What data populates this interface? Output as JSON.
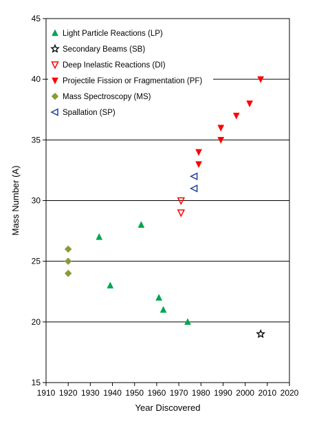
{
  "chart_data": {
    "type": "scatter",
    "title": "",
    "xlabel": "Year Discovered",
    "ylabel": "Mass Number (A)",
    "xlim": [
      1910,
      2020
    ],
    "ylim": [
      15,
      45
    ],
    "xticks": [
      "1910",
      "1920",
      "1930",
      "1940",
      "1950",
      "1960",
      "1970",
      "1980",
      "1990",
      "2000",
      "2010",
      "2020"
    ],
    "yticks": [
      "15",
      "20",
      "25",
      "30",
      "35",
      "40",
      "45"
    ],
    "grid": "horizontal major gridlines",
    "legend_position": "top-left",
    "series": [
      {
        "name": "Light Particle Reactions (LP)",
        "marker": "triangle-up",
        "color": "#00a651",
        "filled": true,
        "points": [
          {
            "x": 1934,
            "y": 27
          },
          {
            "x": 1939,
            "y": 23
          },
          {
            "x": 1953,
            "y": 28
          },
          {
            "x": 1961,
            "y": 22
          },
          {
            "x": 1963,
            "y": 21
          },
          {
            "x": 1974,
            "y": 20
          }
        ]
      },
      {
        "name": "Secondary Beams (SB)",
        "marker": "star",
        "color": "#000000",
        "filled": false,
        "points": [
          {
            "x": 2007,
            "y": 19
          }
        ]
      },
      {
        "name": "Deep Inelastic Reactions (DI)",
        "marker": "triangle-down",
        "color": "#ff0000",
        "filled": false,
        "points": [
          {
            "x": 1971,
            "y": 30
          },
          {
            "x": 1971,
            "y": 29
          }
        ]
      },
      {
        "name": "Projectile Fission or Fragmentation (PF)",
        "marker": "triangle-down",
        "color": "#ff0000",
        "filled": true,
        "points": [
          {
            "x": 1979,
            "y": 34
          },
          {
            "x": 1979,
            "y": 33
          },
          {
            "x": 1989,
            "y": 36
          },
          {
            "x": 1989,
            "y": 35
          },
          {
            "x": 1996,
            "y": 37
          },
          {
            "x": 2002,
            "y": 38
          },
          {
            "x": 2007,
            "y": 40
          }
        ]
      },
      {
        "name": "Mass Spectroscopy (MS)",
        "marker": "diamond",
        "color": "#8a9a3b",
        "filled": true,
        "points": [
          {
            "x": 1920,
            "y": 26
          },
          {
            "x": 1920,
            "y": 25
          },
          {
            "x": 1920,
            "y": 24
          }
        ]
      },
      {
        "name": "Spallation (SP)",
        "marker": "triangle-left",
        "color": "#1f3f99",
        "filled": false,
        "points": [
          {
            "x": 1977,
            "y": 32
          },
          {
            "x": 1977,
            "y": 31
          }
        ]
      }
    ]
  }
}
